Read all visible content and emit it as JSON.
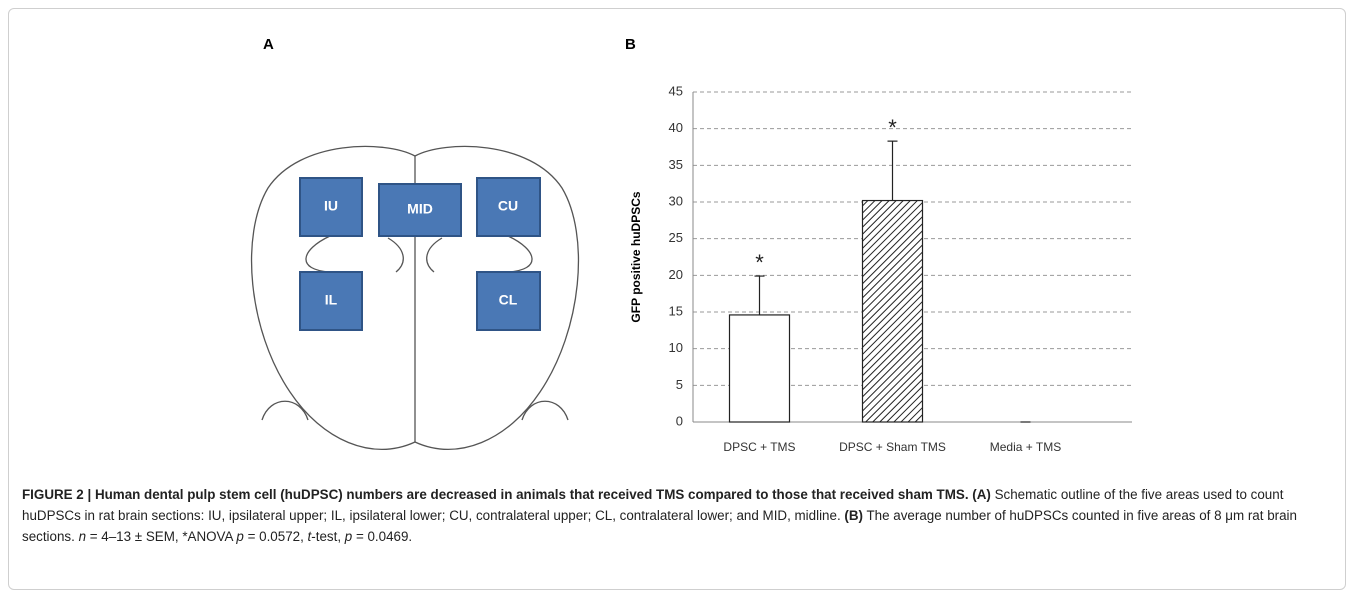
{
  "panel_a": {
    "label": "A",
    "regions": [
      "IU",
      "MID",
      "CU",
      "IL",
      "CL"
    ]
  },
  "chart_data": {
    "type": "bar",
    "label": "B",
    "y_label": "GFP positive huDPSCs",
    "categories": [
      "DPSC + TMS",
      "DPSC + Sham TMS",
      "Media + TMS"
    ],
    "values": [
      14.6,
      30.2,
      0
    ],
    "errors": [
      5.3,
      8.1,
      0
    ],
    "significance": [
      "*",
      "*",
      null
    ],
    "hatch": [
      false,
      true,
      false
    ],
    "color": "#ffffff",
    "ylim": [
      0,
      45
    ],
    "yticks": [
      0,
      5,
      10,
      15,
      20,
      25,
      30,
      35,
      40,
      45
    ],
    "grid": true
  },
  "caption": {
    "runs": [
      {
        "text": "FIGURE 2 | Human dental pulp stem cell (huDPSC) numbers are decreased in animals that received TMS compared to those that received sham TMS.",
        "style": "bold"
      },
      {
        "text": " ",
        "style": "normal"
      },
      {
        "text": "(A)",
        "style": "bold"
      },
      {
        "text": " Schematic outline of the five areas used to count huDPSCs in rat brain sections: IU, ipsilateral upper; IL, ipsilateral lower; CU, contralateral upper; CL, contralateral lower; and MID, midline. ",
        "style": "normal"
      },
      {
        "text": "(B)",
        "style": "bold"
      },
      {
        "text": " The average number of huDPSCs counted in five areas of 8 μm rat brain sections. ",
        "style": "normal"
      },
      {
        "text": "n",
        "style": "italic"
      },
      {
        "text": " = 4–13 ± SEM, *ANOVA ",
        "style": "normal"
      },
      {
        "text": "p",
        "style": "italic"
      },
      {
        "text": " = 0.0572, ",
        "style": "normal"
      },
      {
        "text": "t",
        "style": "italic"
      },
      {
        "text": "-test, ",
        "style": "normal"
      },
      {
        "text": "p",
        "style": "italic"
      },
      {
        "text": " = 0.0469.",
        "style": "normal"
      }
    ]
  }
}
